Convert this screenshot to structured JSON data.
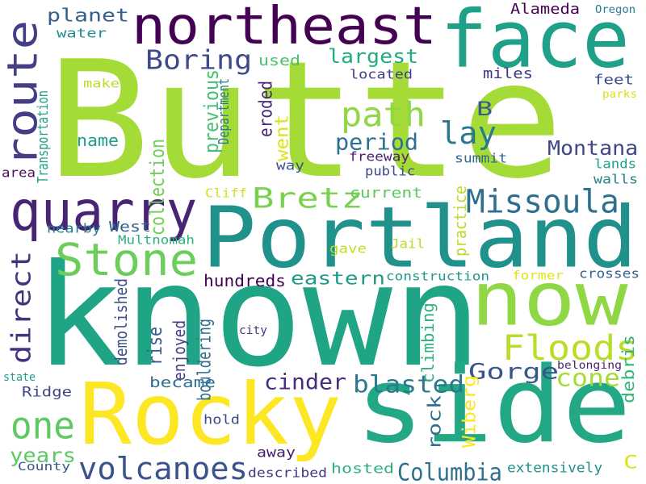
{
  "words": [
    {
      "text": "Butte",
      "color": "#a5db36",
      "vertical": false
    },
    {
      "text": "known",
      "color": "#20a486",
      "vertical": false
    },
    {
      "text": "Portland",
      "color": "#21918c",
      "vertical": false
    },
    {
      "text": "Rocky",
      "color": "#fde725",
      "vertical": false
    },
    {
      "text": "side",
      "color": "#22a884",
      "vertical": false
    },
    {
      "text": "face",
      "color": "#1fa088",
      "vertical": false
    },
    {
      "text": "northeast",
      "color": "#440154",
      "vertical": false
    },
    {
      "text": "now",
      "color": "#8fd744",
      "vertical": false
    },
    {
      "text": "quarry",
      "color": "#482475",
      "vertical": false
    },
    {
      "text": "route",
      "color": "#433e85",
      "vertical": true
    },
    {
      "text": "Stone",
      "color": "#6ccd5a",
      "vertical": false
    },
    {
      "text": "one",
      "color": "#5ec962",
      "vertical": false
    },
    {
      "text": "Missoula",
      "color": "#2d708e",
      "vertical": false
    },
    {
      "text": "Floods",
      "color": "#b8de29",
      "vertical": false
    },
    {
      "text": "volcanoes",
      "color": "#3b528b",
      "vertical": false
    },
    {
      "text": "Bretz",
      "color": "#7ad151",
      "vertical": false
    },
    {
      "text": "path",
      "color": "#8fd744",
      "vertical": false
    },
    {
      "text": "Boring",
      "color": "#3e4a89",
      "vertical": false
    },
    {
      "text": "direct",
      "color": "#46337f",
      "vertical": true
    },
    {
      "text": "lay",
      "color": "#2a788e",
      "vertical": false
    },
    {
      "text": "Montana",
      "color": "#3f4788",
      "vertical": false
    },
    {
      "text": "period",
      "color": "#2c728e",
      "vertical": false
    },
    {
      "text": "Columbia",
      "color": "#2e6f8e",
      "vertical": false
    },
    {
      "text": "cinder",
      "color": "#472d7b",
      "vertical": false
    },
    {
      "text": "blasted",
      "color": "#2a788e",
      "vertical": false
    },
    {
      "text": "Gorge",
      "color": "#39568c",
      "vertical": false
    },
    {
      "text": "cone",
      "color": "#a5db36",
      "vertical": false
    },
    {
      "text": "largest",
      "color": "#25ab82",
      "vertical": false
    },
    {
      "text": "planet",
      "color": "#355f8d",
      "vertical": false
    },
    {
      "text": "eastern",
      "color": "#1e9c89",
      "vertical": false
    },
    {
      "text": "years",
      "color": "#5ec962",
      "vertical": false
    },
    {
      "text": "B",
      "color": "#365c8d",
      "vertical": false
    },
    {
      "text": "C",
      "color": "#d8e219",
      "vertical": false
    },
    {
      "text": "name",
      "color": "#1f9e89",
      "vertical": false
    },
    {
      "text": "rise",
      "color": "#365d8d",
      "vertical": true
    },
    {
      "text": "West",
      "color": "#33638d",
      "vertical": false
    },
    {
      "text": "current",
      "color": "#5ec962",
      "vertical": false
    },
    {
      "text": "previous",
      "color": "#44bf70",
      "vertical": true
    },
    {
      "text": "collection",
      "color": "#6ece58",
      "vertical": true
    },
    {
      "text": "hundreds",
      "color": "#440154",
      "vertical": false
    },
    {
      "text": "Alameda",
      "color": "#440154",
      "vertical": false
    },
    {
      "text": "miles",
      "color": "#453781",
      "vertical": false
    },
    {
      "text": "feet",
      "color": "#3e4989",
      "vertical": false
    },
    {
      "text": "make",
      "color": "#b8de29",
      "vertical": false
    },
    {
      "text": "water",
      "color": "#228d8d",
      "vertical": false
    },
    {
      "text": "used",
      "color": "#4ac16d",
      "vertical": false
    },
    {
      "text": "eroded",
      "color": "#482878",
      "vertical": true
    },
    {
      "text": "went",
      "color": "#dde318",
      "vertical": true
    },
    {
      "text": "located",
      "color": "#423f85",
      "vertical": false
    },
    {
      "text": "freeway",
      "color": "#481f70",
      "vertical": false
    },
    {
      "text": "public",
      "color": "#404688",
      "vertical": false
    },
    {
      "text": "summit",
      "color": "#31688e",
      "vertical": false
    },
    {
      "text": "lands",
      "color": "#1fa188",
      "vertical": false
    },
    {
      "text": "walls",
      "color": "#26828e",
      "vertical": false
    },
    {
      "text": "way",
      "color": "#3b528b",
      "vertical": false
    },
    {
      "text": "area",
      "color": "#471063",
      "vertical": false
    },
    {
      "text": "Cliff",
      "color": "#d0e11c",
      "vertical": false
    },
    {
      "text": "nearby",
      "color": "#287c8e",
      "vertical": false
    },
    {
      "text": "Multnomah",
      "color": "#2cb17e",
      "vertical": false
    },
    {
      "text": "gave",
      "color": "#bddf26",
      "vertical": false
    },
    {
      "text": "Jail",
      "color": "#b5de2b",
      "vertical": false
    },
    {
      "text": "construction",
      "color": "#1f988b",
      "vertical": false
    },
    {
      "text": "former",
      "color": "#e2e418",
      "vertical": false
    },
    {
      "text": "crosses",
      "color": "#34618d",
      "vertical": false
    },
    {
      "text": "practice",
      "color": "#b8de29",
      "vertical": true
    },
    {
      "text": "climbing",
      "color": "#2db27d",
      "vertical": true
    },
    {
      "text": "rock",
      "color": "#2d708e",
      "vertical": true
    },
    {
      "text": "Wiberg",
      "color": "#fde725",
      "vertical": true
    },
    {
      "text": "debris",
      "color": "#35b779",
      "vertical": true
    },
    {
      "text": "bouldering",
      "color": "#2e6e8e",
      "vertical": true
    },
    {
      "text": "enjoyed",
      "color": "#433d84",
      "vertical": true
    },
    {
      "text": "demolished",
      "color": "#3b528b",
      "vertical": true
    },
    {
      "text": "became",
      "color": "#2e6f8e",
      "vertical": false
    },
    {
      "text": "Ridge",
      "color": "#3f4788",
      "vertical": false
    },
    {
      "text": "hold",
      "color": "#3e4a89",
      "vertical": false
    },
    {
      "text": "away",
      "color": "#481a6c",
      "vertical": false
    },
    {
      "text": "County",
      "color": "#39568c",
      "vertical": false
    },
    {
      "text": "described",
      "color": "#453781",
      "vertical": false
    },
    {
      "text": "hosted",
      "color": "#2cb17e",
      "vertical": false
    },
    {
      "text": "extensively",
      "color": "#21918c",
      "vertical": false
    },
    {
      "text": "city",
      "color": "#46327e",
      "vertical": false
    },
    {
      "text": "state",
      "color": "#1f9e89",
      "vertical": false
    },
    {
      "text": "belonging",
      "color": "#482374",
      "vertical": false
    },
    {
      "text": "Oregon",
      "color": "#287d8e",
      "vertical": false
    },
    {
      "text": "parks",
      "color": "#d8e219",
      "vertical": false
    },
    {
      "text": "Transportation",
      "color": "#1fa088",
      "vertical": true
    },
    {
      "text": "Department",
      "color": "#29798e",
      "vertical": true
    }
  ]
}
